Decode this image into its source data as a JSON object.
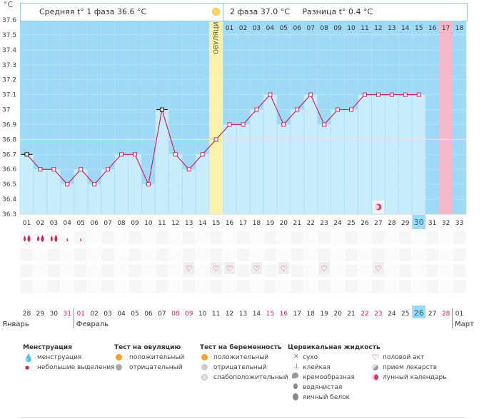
{
  "header": {
    "unit": "°C",
    "phase1_label": "Средняя t° 1 фаза",
    "phase1_value": "36.6 °C",
    "phase2_label": "2 фаза",
    "phase2_value": "37.0 °C",
    "diff_label": "Разница t°",
    "diff_value": "0.4 °C"
  },
  "ovulation_label": "ОВУЛЯЦИЯ",
  "colors": {
    "sky": "#9ed9f5",
    "bar": "#c9ecfb",
    "ovulation": "#fbf1a8",
    "menstruation_marker": "#f7b7c8",
    "line": "#d0245e",
    "today": "#9ed9f5"
  },
  "chart_data": {
    "type": "line",
    "ylim": [
      36.3,
      37.6
    ],
    "yticks": [
      "36.3",
      "36.4",
      "36.5",
      "36.6",
      "36.7",
      "36.8",
      "36.9",
      "37",
      "37.1",
      "37.2",
      "37.3",
      "37.4",
      "37.5",
      "37.6"
    ],
    "coverline": 36.8,
    "cycle_days": [
      "01",
      "02",
      "03",
      "04",
      "05",
      "06",
      "07",
      "08",
      "09",
      "10",
      "11",
      "12",
      "13",
      "14",
      "15",
      "16",
      "17",
      "18",
      "19",
      "20",
      "21",
      "22",
      "23",
      "24",
      "25",
      "26",
      "27",
      "28",
      "29",
      "30",
      "31",
      "32",
      "33"
    ],
    "post_ovulation_days": [
      "01",
      "02",
      "03",
      "04",
      "05",
      "06",
      "07",
      "08",
      "09",
      "10",
      "11",
      "12",
      "13",
      "14",
      "15",
      "16",
      "17",
      "18"
    ],
    "temperatures": [
      36.7,
      36.6,
      36.6,
      36.5,
      36.6,
      36.5,
      36.6,
      36.7,
      36.7,
      36.5,
      37.0,
      36.7,
      36.6,
      36.7,
      36.8,
      36.9,
      36.9,
      37.0,
      37.1,
      36.9,
      37.0,
      37.1,
      36.9,
      37.0,
      37.0,
      37.1,
      37.1,
      37.1,
      37.1,
      37.1,
      null,
      null,
      null
    ],
    "outlier_days": [
      1,
      11
    ],
    "ovulation_day": 15,
    "today_day": 30,
    "next_period_day": 32,
    "dates": [
      "28",
      "29",
      "30",
      "31",
      "01",
      "02",
      "03",
      "04",
      "05",
      "06",
      "07",
      "08",
      "09",
      "10",
      "11",
      "12",
      "13",
      "14",
      "15",
      "16",
      "17",
      "18",
      "19",
      "20",
      "21",
      "22",
      "23",
      "24",
      "25",
      "26",
      "27",
      "28",
      "01"
    ],
    "red_dates": [
      4,
      5,
      12,
      13,
      19,
      20,
      26,
      27,
      32
    ],
    "months": [
      {
        "label": "Январь",
        "start_index": 0
      },
      {
        "label": "Февраль",
        "start_index": 4
      },
      {
        "label": "Март",
        "start_index": 32
      }
    ],
    "moon_day": 27,
    "menstruation_days": [
      {
        "day": 1,
        "kind": "heavy"
      },
      {
        "day": 2,
        "kind": "heavy"
      },
      {
        "day": 3,
        "kind": "heavy"
      },
      {
        "day": 4,
        "kind": "light"
      },
      {
        "day": 5,
        "kind": "light"
      }
    ],
    "intercourse_days": [
      13,
      15,
      16,
      18,
      20,
      23,
      27
    ]
  },
  "legend": {
    "menstruation": {
      "title": "Менструация",
      "items": [
        {
          "label": "менструация",
          "icon": "drop-large-icon"
        },
        {
          "label": "небольшие выделения",
          "icon": "drop-small-icon"
        }
      ]
    },
    "ovulation_test": {
      "title": "Тест на овуляцию",
      "items": [
        {
          "label": "положительный",
          "icon": "orange-circle-icon"
        },
        {
          "label": "отрицательный",
          "icon": "grey-circle-icon"
        }
      ]
    },
    "pregnancy_test": {
      "title": "Тест на беременность",
      "items": [
        {
          "label": "положительный",
          "icon": "orange-circle-icon"
        },
        {
          "label": "отрицательный",
          "icon": "grey-circle-icon"
        },
        {
          "label": "слабоположительный",
          "icon": "light-circle-icon"
        }
      ]
    },
    "cervical": {
      "title": "Цервикальная жидкость",
      "items": [
        {
          "label": "сухо",
          "icon": "cross-icon"
        },
        {
          "label": "клейкая",
          "icon": "sticky-icon"
        },
        {
          "label": "кремообразная",
          "icon": "cream-icon"
        },
        {
          "label": "водянистая",
          "icon": "water-drop-icon"
        },
        {
          "label": "яичный белок",
          "icon": "egg-white-icon"
        }
      ]
    },
    "other": {
      "items": [
        {
          "label": "половой акт",
          "icon": "heart-icon"
        },
        {
          "label": "прием лекарств",
          "icon": "pill-icon"
        },
        {
          "label": "лунный календарь",
          "icon": "moon-icon"
        }
      ]
    }
  }
}
